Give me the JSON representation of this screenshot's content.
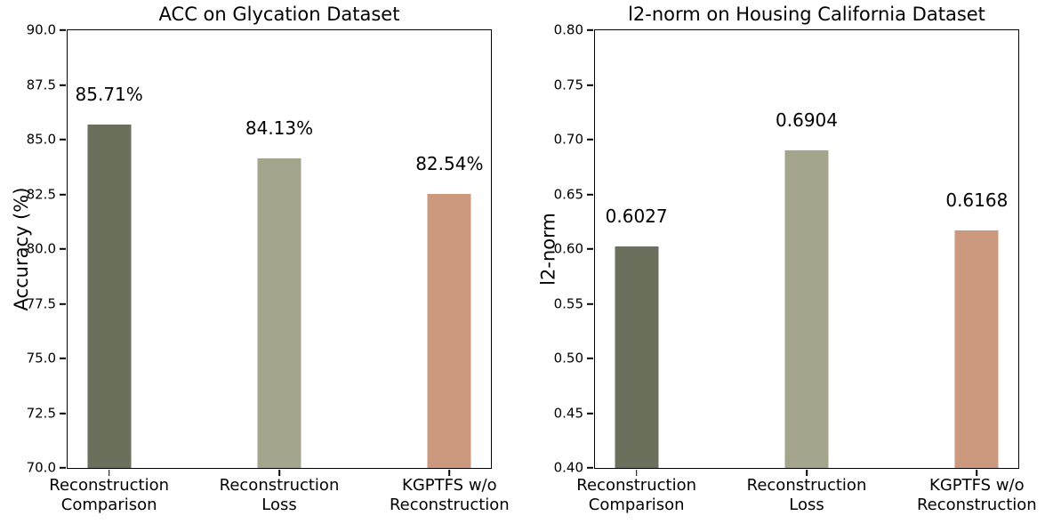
{
  "figure": {
    "background": "#ffffff",
    "text_color": "#000000"
  },
  "chart_data": [
    {
      "type": "bar",
      "title": "ACC on Glycation Dataset",
      "xlabel": "",
      "ylabel": "Accuracy (%)",
      "categories": [
        "Reconstruction\nComparison",
        "Reconstruction\nLoss",
        "KGPTFS w/o\nReconstruction"
      ],
      "values": [
        85.71,
        84.13,
        82.54
      ],
      "bar_labels": [
        "85.71%",
        "84.13%",
        "82.54%"
      ],
      "ylim": [
        70.0,
        90.0
      ],
      "yticks": [
        70.0,
        72.5,
        75.0,
        77.5,
        80.0,
        82.5,
        85.0,
        87.5,
        90.0
      ],
      "ytick_labels": [
        "70.0",
        "72.5",
        "75.0",
        "77.5",
        "80.0",
        "82.5",
        "85.0",
        "87.5",
        "90.0"
      ],
      "colors": [
        "#6b705c",
        "#a5a58d",
        "#cb997e"
      ],
      "grid": false,
      "legend": null
    },
    {
      "type": "bar",
      "title": "l2-norm on Housing California Dataset",
      "xlabel": "",
      "ylabel": "l2-norm",
      "categories": [
        "Reconstruction\nComparison",
        "Reconstruction\nLoss",
        "KGPTFS w/o\nReconstruction"
      ],
      "values": [
        0.6027,
        0.6904,
        0.6168
      ],
      "bar_labels": [
        "0.6027",
        "0.6904",
        "0.6168"
      ],
      "ylim": [
        0.4,
        0.8
      ],
      "yticks": [
        0.4,
        0.45,
        0.5,
        0.55,
        0.6,
        0.65,
        0.7,
        0.75,
        0.8
      ],
      "ytick_labels": [
        "0.40",
        "0.45",
        "0.50",
        "0.55",
        "0.60",
        "0.65",
        "0.70",
        "0.75",
        "0.80"
      ],
      "colors": [
        "#6b705c",
        "#a5a58d",
        "#cb997e"
      ],
      "grid": false,
      "legend": null
    }
  ]
}
